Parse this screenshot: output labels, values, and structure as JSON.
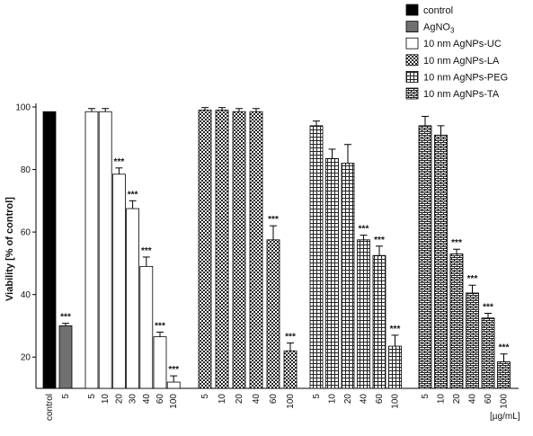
{
  "chart_data": {
    "type": "bar",
    "ylabel": "Viability [% of control]",
    "xunit": "[µg/mL]",
    "ylim": [
      10,
      100
    ],
    "yticks": [
      20,
      40,
      60,
      80,
      100
    ],
    "grid": false,
    "legend_position": "top-right",
    "legend": [
      {
        "label": "control",
        "pattern": "solid-black"
      },
      {
        "label": "AgNO",
        "sub": "3",
        "pattern": "solid-gray"
      },
      {
        "label": "10 nm AgNPs-UC",
        "pattern": "white"
      },
      {
        "label": "10 nm AgNPs-LA",
        "pattern": "crosshatch"
      },
      {
        "label": "10 nm AgNPs-PEG",
        "pattern": "grid"
      },
      {
        "label": "10 nm AgNPs-TA",
        "pattern": "brick"
      }
    ],
    "series": [
      {
        "name": "control",
        "pattern": "solid-black",
        "categories": [
          "control"
        ],
        "values": [
          98.5
        ],
        "errors": [
          0
        ],
        "significance": [
          ""
        ]
      },
      {
        "name": "AgNO3",
        "pattern": "solid-gray",
        "categories": [
          "5"
        ],
        "values": [
          30
        ],
        "errors": [
          0.8
        ],
        "significance": [
          "***"
        ]
      },
      {
        "name": "10 nm AgNPs-UC",
        "pattern": "white",
        "categories": [
          "5",
          "10",
          "20",
          "30",
          "40",
          "60",
          "100"
        ],
        "values": [
          98.5,
          98.5,
          78.5,
          67.5,
          49,
          26.5,
          12
        ],
        "errors": [
          1,
          1,
          2,
          2.5,
          3,
          1.5,
          2
        ],
        "significance": [
          "",
          "",
          "***",
          "***",
          "***",
          "***",
          "***"
        ]
      },
      {
        "name": "10 nm AgNPs-LA",
        "pattern": "crosshatch",
        "categories": [
          "5",
          "10",
          "20",
          "40",
          "60",
          "100"
        ],
        "values": [
          99,
          99,
          98.5,
          98.5,
          57.5,
          22
        ],
        "errors": [
          0.8,
          0.8,
          1,
          1,
          4.5,
          2.5
        ],
        "significance": [
          "",
          "",
          "",
          "",
          "***",
          "***"
        ]
      },
      {
        "name": "10 nm AgNPs-PEG",
        "pattern": "grid",
        "categories": [
          "5",
          "10",
          "20",
          "40",
          "60",
          "100"
        ],
        "values": [
          94,
          83.5,
          82,
          57.5,
          52.5,
          23.5
        ],
        "errors": [
          1.5,
          3,
          6,
          1.5,
          3,
          3.5
        ],
        "significance": [
          "",
          "",
          "",
          "***",
          "***",
          "***"
        ]
      },
      {
        "name": "10 nm AgNPs-TA",
        "pattern": "brick",
        "categories": [
          "5",
          "10",
          "20",
          "40",
          "60",
          "100"
        ],
        "values": [
          94,
          91,
          53,
          40.5,
          32.5,
          18.5
        ],
        "errors": [
          3,
          3,
          1.5,
          2.5,
          1.5,
          2.5
        ],
        "significance": [
          "",
          "",
          "***",
          "***",
          "***",
          "***"
        ]
      }
    ]
  }
}
